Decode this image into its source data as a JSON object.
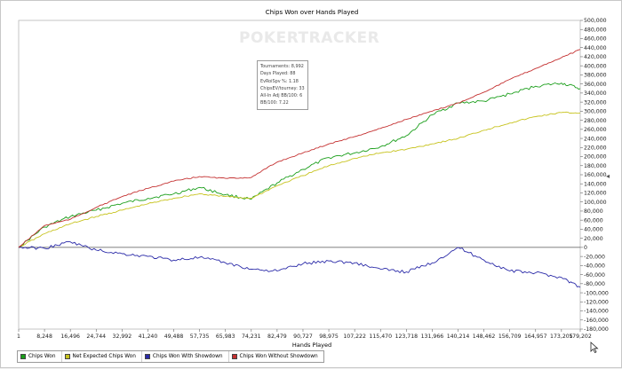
{
  "watermark": "POKERTRACKER",
  "stats": [
    "Tournaments: 8,992",
    "Days Played: 88",
    "EvRoiSpv %: 1.18",
    "ChipsEV/tourney: 33",
    "All-In Adj BB/100: 6",
    "BB/100: 7.22"
  ],
  "legend": [
    {
      "label": "Chips Won",
      "color": "#1a9e1a"
    },
    {
      "label": "Net Expected Chips Won",
      "color": "#c7c31e"
    },
    {
      "label": "Chips Won With Showdown",
      "color": "#2a2aa8"
    },
    {
      "label": "Chips Won Without Showdown",
      "color": "#c43030"
    }
  ],
  "collapse_handle": "◂",
  "chart_data": {
    "type": "line",
    "title": "Chips Won over Hands Played",
    "xlabel": "Hands Played",
    "ylabel": "",
    "xlim": [
      1,
      179202
    ],
    "ylim": [
      -180000,
      500000
    ],
    "x_ticks": [
      "1",
      "8,248",
      "16,496",
      "24,744",
      "32,992",
      "41,240",
      "49,488",
      "57,735",
      "65,983",
      "74,231",
      "82,479",
      "90,727",
      "98,975",
      "107,222",
      "115,470",
      "123,718",
      "131,966",
      "140,214",
      "148,462",
      "156,709",
      "164,957",
      "173,205",
      "179,202"
    ],
    "y_ticks": [
      "500,000",
      "480,000",
      "460,000",
      "440,000",
      "420,000",
      "400,000",
      "380,000",
      "360,000",
      "340,000",
      "320,000",
      "300,000",
      "280,000",
      "260,000",
      "240,000",
      "220,000",
      "200,000",
      "180,000",
      "160,000",
      "140,000",
      "120,000",
      "100,000",
      "80,000",
      "60,000",
      "40,000",
      "20,000",
      "0",
      "-20,000",
      "-40,000",
      "-60,000",
      "-80,000",
      "-100,000",
      "-120,000",
      "-140,000",
      "-160,000",
      "-180,000"
    ],
    "grid": false,
    "legend_position": "bottom-left",
    "series": [
      {
        "name": "Chips Won",
        "color": "#1a9e1a",
        "x": [
          1,
          8248,
          16496,
          24744,
          32992,
          41240,
          49488,
          57735,
          65983,
          74231,
          82479,
          90727,
          98975,
          107222,
          115470,
          123718,
          131966,
          140214,
          148462,
          156709,
          164957,
          173205,
          179202
        ],
        "y": [
          0,
          45000,
          68000,
          82000,
          97000,
          108000,
          118000,
          132000,
          116000,
          106000,
          142000,
          172000,
          198000,
          208000,
          222000,
          246000,
          292000,
          318000,
          322000,
          338000,
          355000,
          362000,
          350000
        ]
      },
      {
        "name": "Net Expected Chips Won",
        "color": "#c7c31e",
        "x": [
          1,
          8248,
          16496,
          24744,
          32992,
          41240,
          49488,
          57735,
          65983,
          74231,
          82479,
          90727,
          98975,
          107222,
          115470,
          123718,
          131966,
          140214,
          148462,
          156709,
          164957,
          173205,
          179202
        ],
        "y": [
          0,
          30000,
          52000,
          68000,
          82000,
          96000,
          108000,
          118000,
          112000,
          108000,
          136000,
          158000,
          180000,
          196000,
          208000,
          216000,
          228000,
          240000,
          258000,
          274000,
          288000,
          297000,
          296000
        ]
      },
      {
        "name": "Chips Won With Showdown",
        "color": "#2a2aa8",
        "x": [
          1,
          8248,
          16496,
          24744,
          32992,
          41240,
          49488,
          57735,
          65983,
          74231,
          82479,
          90727,
          98975,
          107222,
          115470,
          123718,
          131966,
          140214,
          148462,
          156709,
          164957,
          173205,
          179202
        ],
        "y": [
          0,
          -2000,
          12000,
          -6000,
          -14000,
          -20000,
          -28000,
          -22000,
          -34000,
          -48000,
          -52000,
          -36000,
          -30000,
          -34000,
          -48000,
          -54000,
          -34000,
          0,
          -28000,
          -52000,
          -56000,
          -66000,
          -88000
        ]
      },
      {
        "name": "Chips Won Without Showdown",
        "color": "#c43030",
        "x": [
          1,
          8248,
          16496,
          24744,
          32992,
          41240,
          49488,
          57735,
          65983,
          74231,
          82479,
          90727,
          98975,
          107222,
          115470,
          123718,
          131966,
          140214,
          148462,
          156709,
          164957,
          173205,
          179202
        ],
        "y": [
          0,
          48000,
          62000,
          88000,
          112000,
          130000,
          146000,
          156000,
          152000,
          154000,
          188000,
          208000,
          228000,
          244000,
          262000,
          282000,
          300000,
          318000,
          342000,
          370000,
          394000,
          418000,
          436000
        ]
      }
    ]
  }
}
